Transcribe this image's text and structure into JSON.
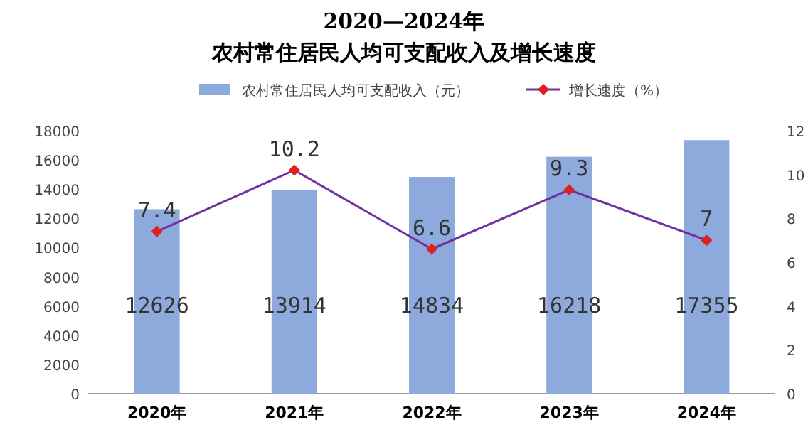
{
  "chart_data": {
    "type": "bar",
    "title": "2020—2024年",
    "subtitle": "农村常住居民人均可支配收入及增长速度",
    "categories": [
      "2020年",
      "2021年",
      "2022年",
      "2023年",
      "2024年"
    ],
    "series": [
      {
        "name": "农村常住居民人均可支配收入（元）",
        "color": "#8ea9db",
        "values": [
          12626,
          13914,
          14834,
          16218,
          17355
        ]
      },
      {
        "name": "增长速度（%）",
        "type": "line",
        "axis": "y2",
        "color": "#7030a0",
        "marker": "diamond",
        "values": [
          7.4,
          10.2,
          6.6,
          9.3,
          7
        ]
      }
    ],
    "ylim": [
      0,
      18000
    ],
    "yticks": [
      0,
      2000,
      4000,
      6000,
      8000,
      10000,
      12000,
      14000,
      16000,
      18000
    ],
    "y2lim": [
      0,
      12
    ],
    "y2ticks": [
      0,
      2,
      4,
      6,
      8,
      10,
      12
    ],
    "data_labels": true,
    "legend": "top",
    "grid": false
  }
}
